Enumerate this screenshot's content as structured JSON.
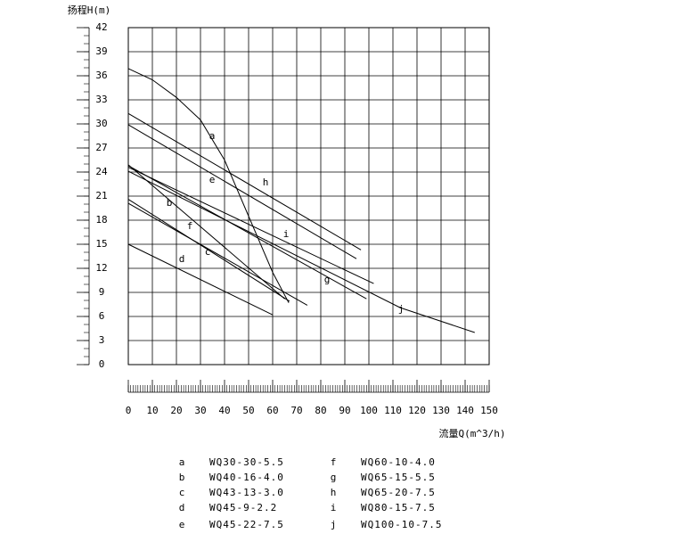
{
  "chart_data": {
    "type": "line",
    "title": "扬程H(m)",
    "x_label": "流量Q(m^3/h)",
    "xlim": [
      0,
      150
    ],
    "ylim": [
      0,
      42
    ],
    "xticks": [
      0,
      10,
      20,
      30,
      40,
      50,
      60,
      70,
      80,
      90,
      100,
      110,
      120,
      130,
      140,
      150
    ],
    "yticks": [
      0,
      3,
      6,
      9,
      12,
      15,
      18,
      21,
      24,
      27,
      30,
      33,
      36,
      39,
      42
    ],
    "grid": true,
    "color": "#000000",
    "series": [
      {
        "name": "a",
        "model": "WQ30-30-5.5",
        "x": [
          0,
          10,
          20,
          30,
          40,
          50,
          60,
          66.7
        ],
        "values": [
          36.9,
          35.5,
          33.3,
          30.5,
          25.5,
          18.5,
          11.5,
          7.7
        ]
      },
      {
        "name": "b",
        "model": "WQ40-16-4.0",
        "x": [
          0,
          65
        ],
        "values": [
          24.9,
          8.2
        ]
      },
      {
        "name": "c",
        "model": "WQ43-13-3.0",
        "x": [
          0,
          74.4
        ],
        "values": [
          20.1,
          7.4
        ]
      },
      {
        "name": "d",
        "model": "WQ45-9-2.2",
        "x": [
          0,
          60
        ],
        "values": [
          15,
          6.2
        ]
      },
      {
        "name": "e",
        "model": "WQ45-22-7.5",
        "x": [
          0,
          94.8
        ],
        "values": [
          29.9,
          13.2
        ]
      },
      {
        "name": "f",
        "model": "WQ60-10-4.0",
        "x": [
          0,
          67
        ],
        "values": [
          20.6,
          7.9
        ]
      },
      {
        "name": "g",
        "model": "WQ65-15-5.5",
        "x": [
          0,
          99
        ],
        "values": [
          24.8,
          8.2
        ]
      },
      {
        "name": "h",
        "model": "WQ65-20-7.5",
        "x": [
          0,
          96.7
        ],
        "values": [
          31.3,
          14.3
        ]
      },
      {
        "name": "i",
        "model": "WQ80-15-7.5",
        "x": [
          0,
          102
        ],
        "values": [
          24.6,
          10.1
        ]
      },
      {
        "name": "j",
        "model": "WQ100-10-7.5",
        "x": [
          0,
          113,
          144
        ],
        "values": [
          24.1,
          7.1,
          4
        ]
      }
    ]
  }
}
